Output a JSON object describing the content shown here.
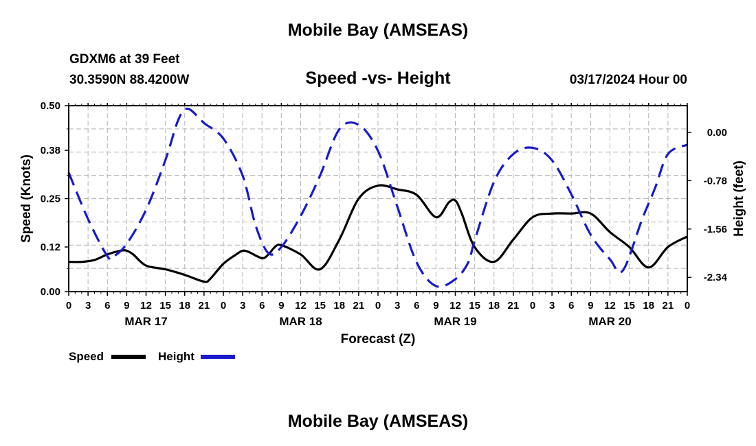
{
  "header": {
    "title": "Mobile Bay (AMSEAS)",
    "station": "GDXM6 at 39 Feet",
    "coords": "30.3590N  88.4200W",
    "subtitle": "Speed -vs- Height",
    "datetime": "03/17/2024 Hour 00"
  },
  "footer": {
    "title": "Mobile Bay (AMSEAS)"
  },
  "colors": {
    "speed": "#000000",
    "height": "#1a1acc",
    "grid": "#b4b4b4"
  },
  "chart_data": {
    "type": "line",
    "title": "Speed -vs- Height",
    "xlabel": "Forecast (Z)",
    "ylabel": "Speed (Knots)",
    "y2label": "Height (feet)",
    "xlim": [
      0,
      96
    ],
    "ylim": [
      0,
      0.5
    ],
    "y2lim": [
      -2.57,
      0.43
    ],
    "x_ticks": [
      0,
      3,
      6,
      9,
      12,
      15,
      18,
      21,
      24,
      27,
      30,
      33,
      36,
      39,
      42,
      45,
      48,
      51,
      54,
      57,
      60,
      63,
      66,
      69,
      72,
      75,
      78,
      81,
      84,
      87,
      90,
      93,
      96
    ],
    "x_tick_labels": [
      "0",
      "3",
      "6",
      "9",
      "12",
      "15",
      "18",
      "21",
      "0",
      "3",
      "6",
      "9",
      "12",
      "15",
      "18",
      "21",
      "0",
      "3",
      "6",
      "9",
      "12",
      "15",
      "18",
      "21",
      "0",
      "3",
      "6",
      "9",
      "12",
      "15",
      "18",
      "21",
      "0"
    ],
    "day_labels": [
      {
        "label": "MAR 17",
        "x": 12
      },
      {
        "label": "MAR 18",
        "x": 36
      },
      {
        "label": "MAR 19",
        "x": 60
      },
      {
        "label": "MAR 20",
        "x": 84
      }
    ],
    "y_ticks": [
      0.0,
      0.12,
      0.25,
      0.38,
      0.5
    ],
    "y_tick_labels": [
      "0.00",
      "0.12",
      "0.25",
      "0.38",
      "0.50"
    ],
    "y2_ticks": [
      0.0,
      -0.78,
      -1.56,
      -2.34
    ],
    "y2_tick_labels": [
      "0.00",
      "-0.78",
      "-1.56",
      "-2.34"
    ],
    "legend": {
      "position": "bottom-left",
      "items": [
        {
          "label": "Speed",
          "series": "speed"
        },
        {
          "label": "Height",
          "series": "height"
        }
      ]
    },
    "series": [
      {
        "name": "Speed",
        "axis": "left",
        "style": "solid",
        "x": [
          0,
          2,
          4,
          6,
          8,
          9,
          10,
          12,
          15,
          18,
          21,
          22,
          24,
          26,
          27,
          28,
          30,
          31,
          32,
          33,
          36,
          39,
          42,
          45,
          48,
          51,
          54,
          57,
          59,
          60,
          61,
          63,
          66,
          69,
          72,
          75,
          78,
          81,
          84,
          87,
          90,
          93,
          96
        ],
        "y": [
          0.08,
          0.08,
          0.085,
          0.1,
          0.11,
          0.11,
          0.1,
          0.07,
          0.06,
          0.045,
          0.027,
          0.035,
          0.075,
          0.1,
          0.11,
          0.106,
          0.09,
          0.1,
          0.12,
          0.125,
          0.1,
          0.06,
          0.14,
          0.25,
          0.285,
          0.275,
          0.26,
          0.2,
          0.24,
          0.245,
          0.21,
          0.12,
          0.08,
          0.14,
          0.2,
          0.21,
          0.21,
          0.21,
          0.16,
          0.12,
          0.065,
          0.12,
          0.148
        ]
      },
      {
        "name": "Height",
        "axis": "right",
        "style": "dashed",
        "x": [
          0,
          3,
          6,
          7,
          9,
          12,
          15,
          17,
          18.5,
          21,
          24,
          27,
          29,
          31,
          33,
          36,
          39,
          42,
          45,
          48,
          51,
          54,
          57,
          60,
          62,
          63,
          66,
          69,
          72,
          75,
          78,
          81,
          84,
          86,
          89,
          91,
          93,
          96
        ],
        "y": [
          -0.65,
          -1.4,
          -2.0,
          -2.0,
          -1.8,
          -1.25,
          -0.45,
          0.2,
          0.38,
          0.15,
          -0.1,
          -0.7,
          -1.5,
          -1.95,
          -1.85,
          -1.35,
          -0.7,
          0.05,
          0.12,
          -0.3,
          -1.2,
          -2.1,
          -2.48,
          -2.37,
          -2.1,
          -1.75,
          -0.8,
          -0.35,
          -0.25,
          -0.45,
          -1.0,
          -1.65,
          -2.05,
          -2.23,
          -1.4,
          -0.9,
          -0.35,
          -0.2
        ]
      }
    ]
  }
}
